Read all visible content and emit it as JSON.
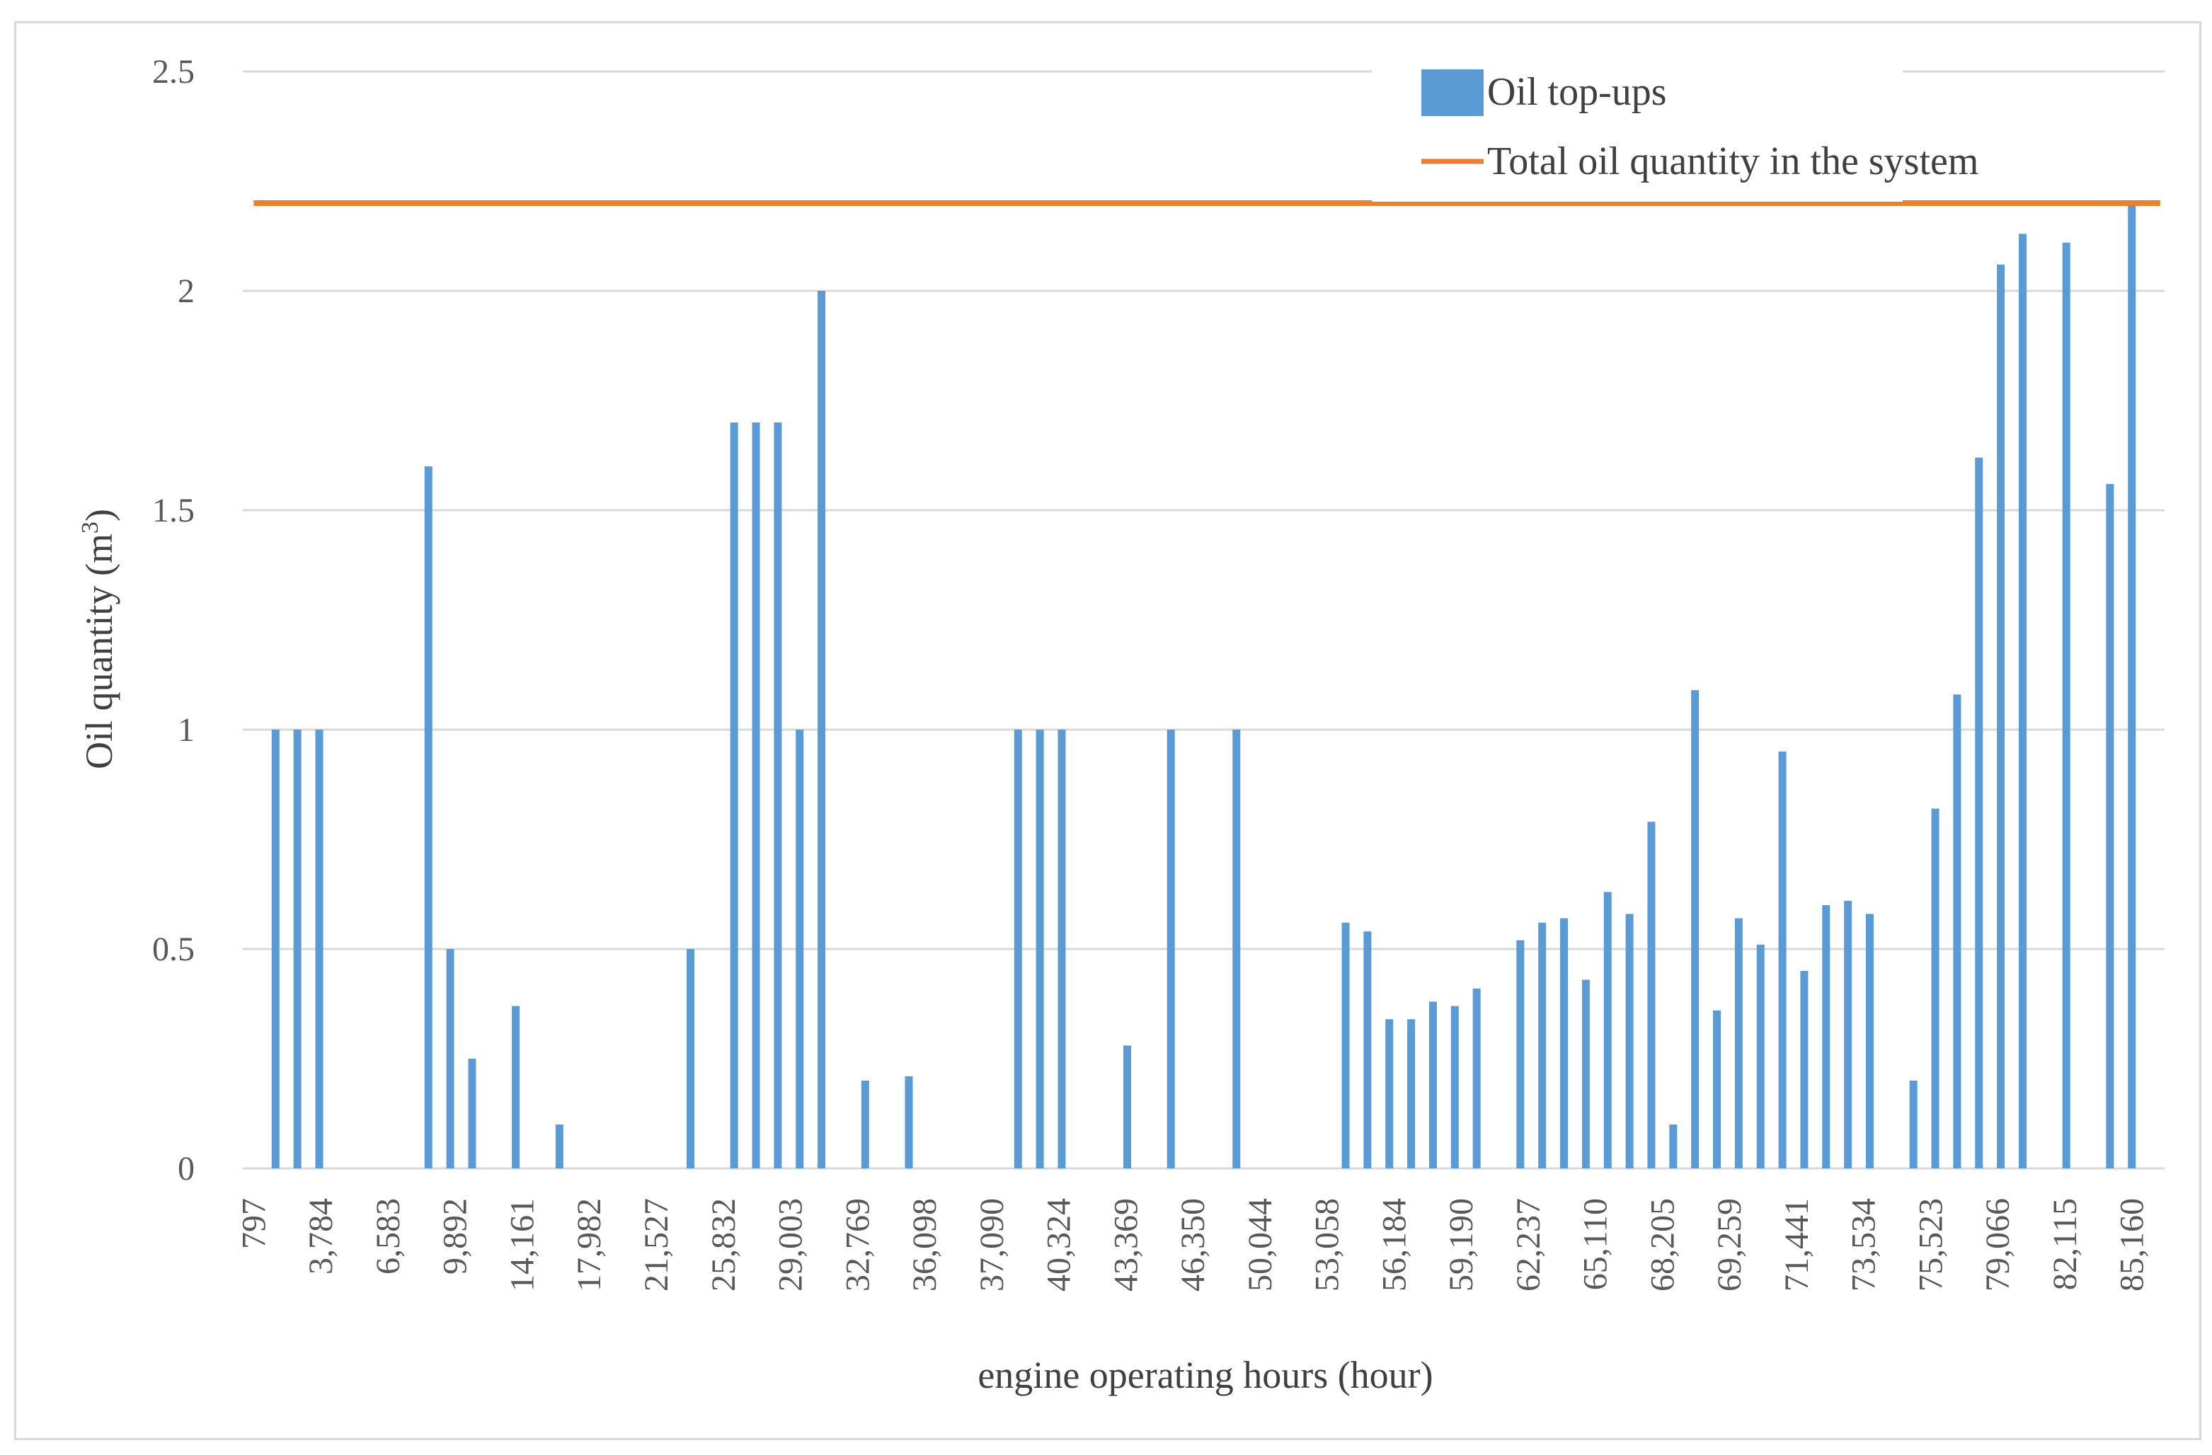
{
  "chart_data": {
    "type": "bar",
    "xlabel": "engine operating hours (hour)",
    "ylabel": "Oil quantity (m",
    "ylabel_sup": "3",
    "ylabel_close": ")",
    "ylim": [
      0,
      2.5
    ],
    "yticks": [
      0,
      0.5,
      1,
      1.5,
      2,
      2.5
    ],
    "ytick_labels": [
      "0",
      "0.5",
      "1",
      "1.5",
      "2",
      "2.5"
    ],
    "xtick_labels": [
      "797",
      "3,784",
      "6,583",
      "9,892",
      "14,161",
      "17,982",
      "21,527",
      "25,832",
      "29,003",
      "32,769",
      "36,098",
      "37,090",
      "40,324",
      "43,369",
      "46,350",
      "50,044",
      "53,058",
      "56,184",
      "59,190",
      "62,237",
      "65,110",
      "68,205",
      "69,259",
      "71,441",
      "73,534",
      "75,523",
      "79,066",
      "82,115",
      "85,160"
    ],
    "slots": 88,
    "grid": true,
    "legend_position": "top-right",
    "series": [
      {
        "name": "Oil top-ups",
        "kind": "bar",
        "color": "#5b9bd5",
        "bars": [
          {
            "slot": 1,
            "value": 1.0
          },
          {
            "slot": 2,
            "value": 1.0
          },
          {
            "slot": 3,
            "value": 1.0
          },
          {
            "slot": 8,
            "value": 1.6
          },
          {
            "slot": 9,
            "value": 0.5
          },
          {
            "slot": 10,
            "value": 0.25
          },
          {
            "slot": 12,
            "value": 0.37
          },
          {
            "slot": 14,
            "value": 0.1
          },
          {
            "slot": 20,
            "value": 0.5
          },
          {
            "slot": 22,
            "value": 1.7
          },
          {
            "slot": 23,
            "value": 1.7
          },
          {
            "slot": 24,
            "value": 1.7
          },
          {
            "slot": 25,
            "value": 1.0
          },
          {
            "slot": 26,
            "value": 2.0
          },
          {
            "slot": 28,
            "value": 0.2
          },
          {
            "slot": 30,
            "value": 0.21
          },
          {
            "slot": 35,
            "value": 1.0
          },
          {
            "slot": 36,
            "value": 1.0
          },
          {
            "slot": 37,
            "value": 1.0
          },
          {
            "slot": 40,
            "value": 0.28
          },
          {
            "slot": 42,
            "value": 1.0
          },
          {
            "slot": 45,
            "value": 1.0
          },
          {
            "slot": 50,
            "value": 0.56
          },
          {
            "slot": 51,
            "value": 0.54
          },
          {
            "slot": 52,
            "value": 0.34
          },
          {
            "slot": 53,
            "value": 0.34
          },
          {
            "slot": 54,
            "value": 0.38
          },
          {
            "slot": 55,
            "value": 0.37
          },
          {
            "slot": 56,
            "value": 0.41
          },
          {
            "slot": 58,
            "value": 0.52
          },
          {
            "slot": 59,
            "value": 0.56
          },
          {
            "slot": 60,
            "value": 0.57
          },
          {
            "slot": 61,
            "value": 0.43
          },
          {
            "slot": 62,
            "value": 0.63
          },
          {
            "slot": 63,
            "value": 0.58
          },
          {
            "slot": 64,
            "value": 0.79
          },
          {
            "slot": 65,
            "value": 0.1
          },
          {
            "slot": 66,
            "value": 1.09
          },
          {
            "slot": 67,
            "value": 0.36
          },
          {
            "slot": 68,
            "value": 0.57
          },
          {
            "slot": 69,
            "value": 0.51
          },
          {
            "slot": 70,
            "value": 0.95
          },
          {
            "slot": 71,
            "value": 0.45
          },
          {
            "slot": 72,
            "value": 0.6
          },
          {
            "slot": 73,
            "value": 0.61
          },
          {
            "slot": 74,
            "value": 0.58
          },
          {
            "slot": 76,
            "value": 0.2
          },
          {
            "slot": 77,
            "value": 0.82
          },
          {
            "slot": 78,
            "value": 1.08
          },
          {
            "slot": 79,
            "value": 1.62
          },
          {
            "slot": 80,
            "value": 2.06
          },
          {
            "slot": 81,
            "value": 2.13
          },
          {
            "slot": 83,
            "value": 2.11
          },
          {
            "slot": 85,
            "value": 1.56
          },
          {
            "slot": 86,
            "value": 2.2
          }
        ]
      },
      {
        "name": "Total oil quantity in the system",
        "kind": "line",
        "color": "#ed7d31",
        "value": 2.2
      }
    ]
  }
}
